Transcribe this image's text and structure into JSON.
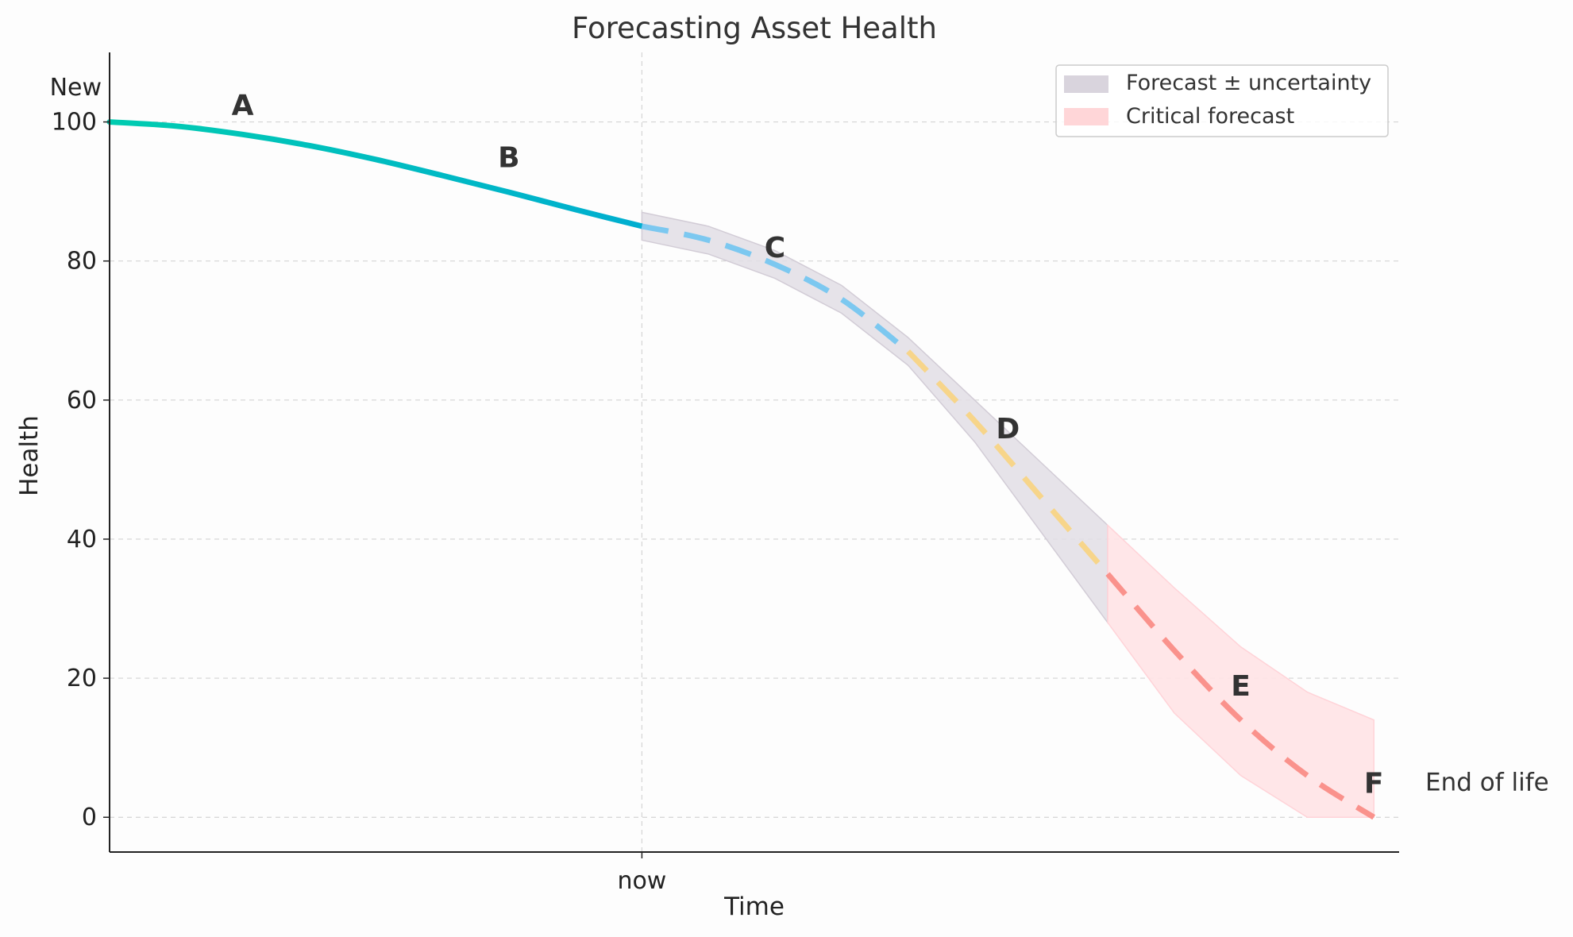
{
  "chart_data": {
    "type": "line",
    "title": "Forecasting Asset Health",
    "xlabel": "Time",
    "ylabel": "Health",
    "ylim": [
      -5,
      110
    ],
    "xlim": [
      0,
      10
    ],
    "yticks": [
      0,
      20,
      40,
      60,
      80,
      100
    ],
    "xtick_now_value": 4,
    "xtick_now_label": "now",
    "new_label": "New",
    "new_value": 105,
    "end_of_life_label": "End of life",
    "end_of_life_value": 5,
    "grid": true,
    "legend_position": "top-right",
    "legend": [
      {
        "label": "Forecast ± uncertainty",
        "color": "#d9d4dd"
      },
      {
        "label": "Critical forecast",
        "color": "#ffd6d8"
      }
    ],
    "colors": {
      "history_start": "#00ccb0",
      "history_end": "#00aed0",
      "forecast_blue": "#7cc8f0",
      "forecast_yellow": "#f7d58a",
      "forecast_red": "#fa928c",
      "band_gray": "#e2dee5",
      "band_red": "#ffe3e6"
    },
    "series": [
      {
        "name": "history",
        "x": [
          0,
          0.5,
          1,
          1.5,
          2,
          2.5,
          3,
          3.5,
          4
        ],
        "values": [
          100,
          99.4,
          98.2,
          96.6,
          94.6,
          92.3,
          89.9,
          87.4,
          85
        ]
      },
      {
        "name": "forecast",
        "x": [
          4,
          4.5,
          5,
          5.5,
          6,
          6.5,
          7,
          7.5,
          8,
          8.5,
          9,
          9.5
        ],
        "values": [
          85,
          83,
          79.5,
          74.5,
          67,
          57,
          46,
          35,
          24,
          14,
          6,
          0
        ]
      }
    ],
    "color_change_x": [
      6.0,
      7.5
    ],
    "uncertainty_band": {
      "x": [
        4,
        4.5,
        5,
        5.5,
        6,
        6.5,
        7,
        7.5
      ],
      "upper": [
        87,
        85,
        81.5,
        76.5,
        69,
        60,
        51,
        42
      ],
      "lower": [
        83,
        81,
        77.5,
        72.5,
        65,
        54,
        41,
        28
      ]
    },
    "critical_band": {
      "x": [
        7.5,
        8,
        8.5,
        9,
        9.5
      ],
      "upper": [
        42,
        33,
        24.5,
        18,
        14
      ],
      "lower": [
        28,
        15,
        6,
        0,
        0
      ]
    },
    "annotations": [
      {
        "text": "A",
        "x": 1.0,
        "y": 102.5
      },
      {
        "text": "B",
        "x": 3.0,
        "y": 95
      },
      {
        "text": "C",
        "x": 5.0,
        "y": 82
      },
      {
        "text": "D",
        "x": 6.75,
        "y": 56
      },
      {
        "text": "E",
        "x": 8.5,
        "y": 19
      },
      {
        "text": "F",
        "x": 9.5,
        "y": 5
      }
    ]
  }
}
